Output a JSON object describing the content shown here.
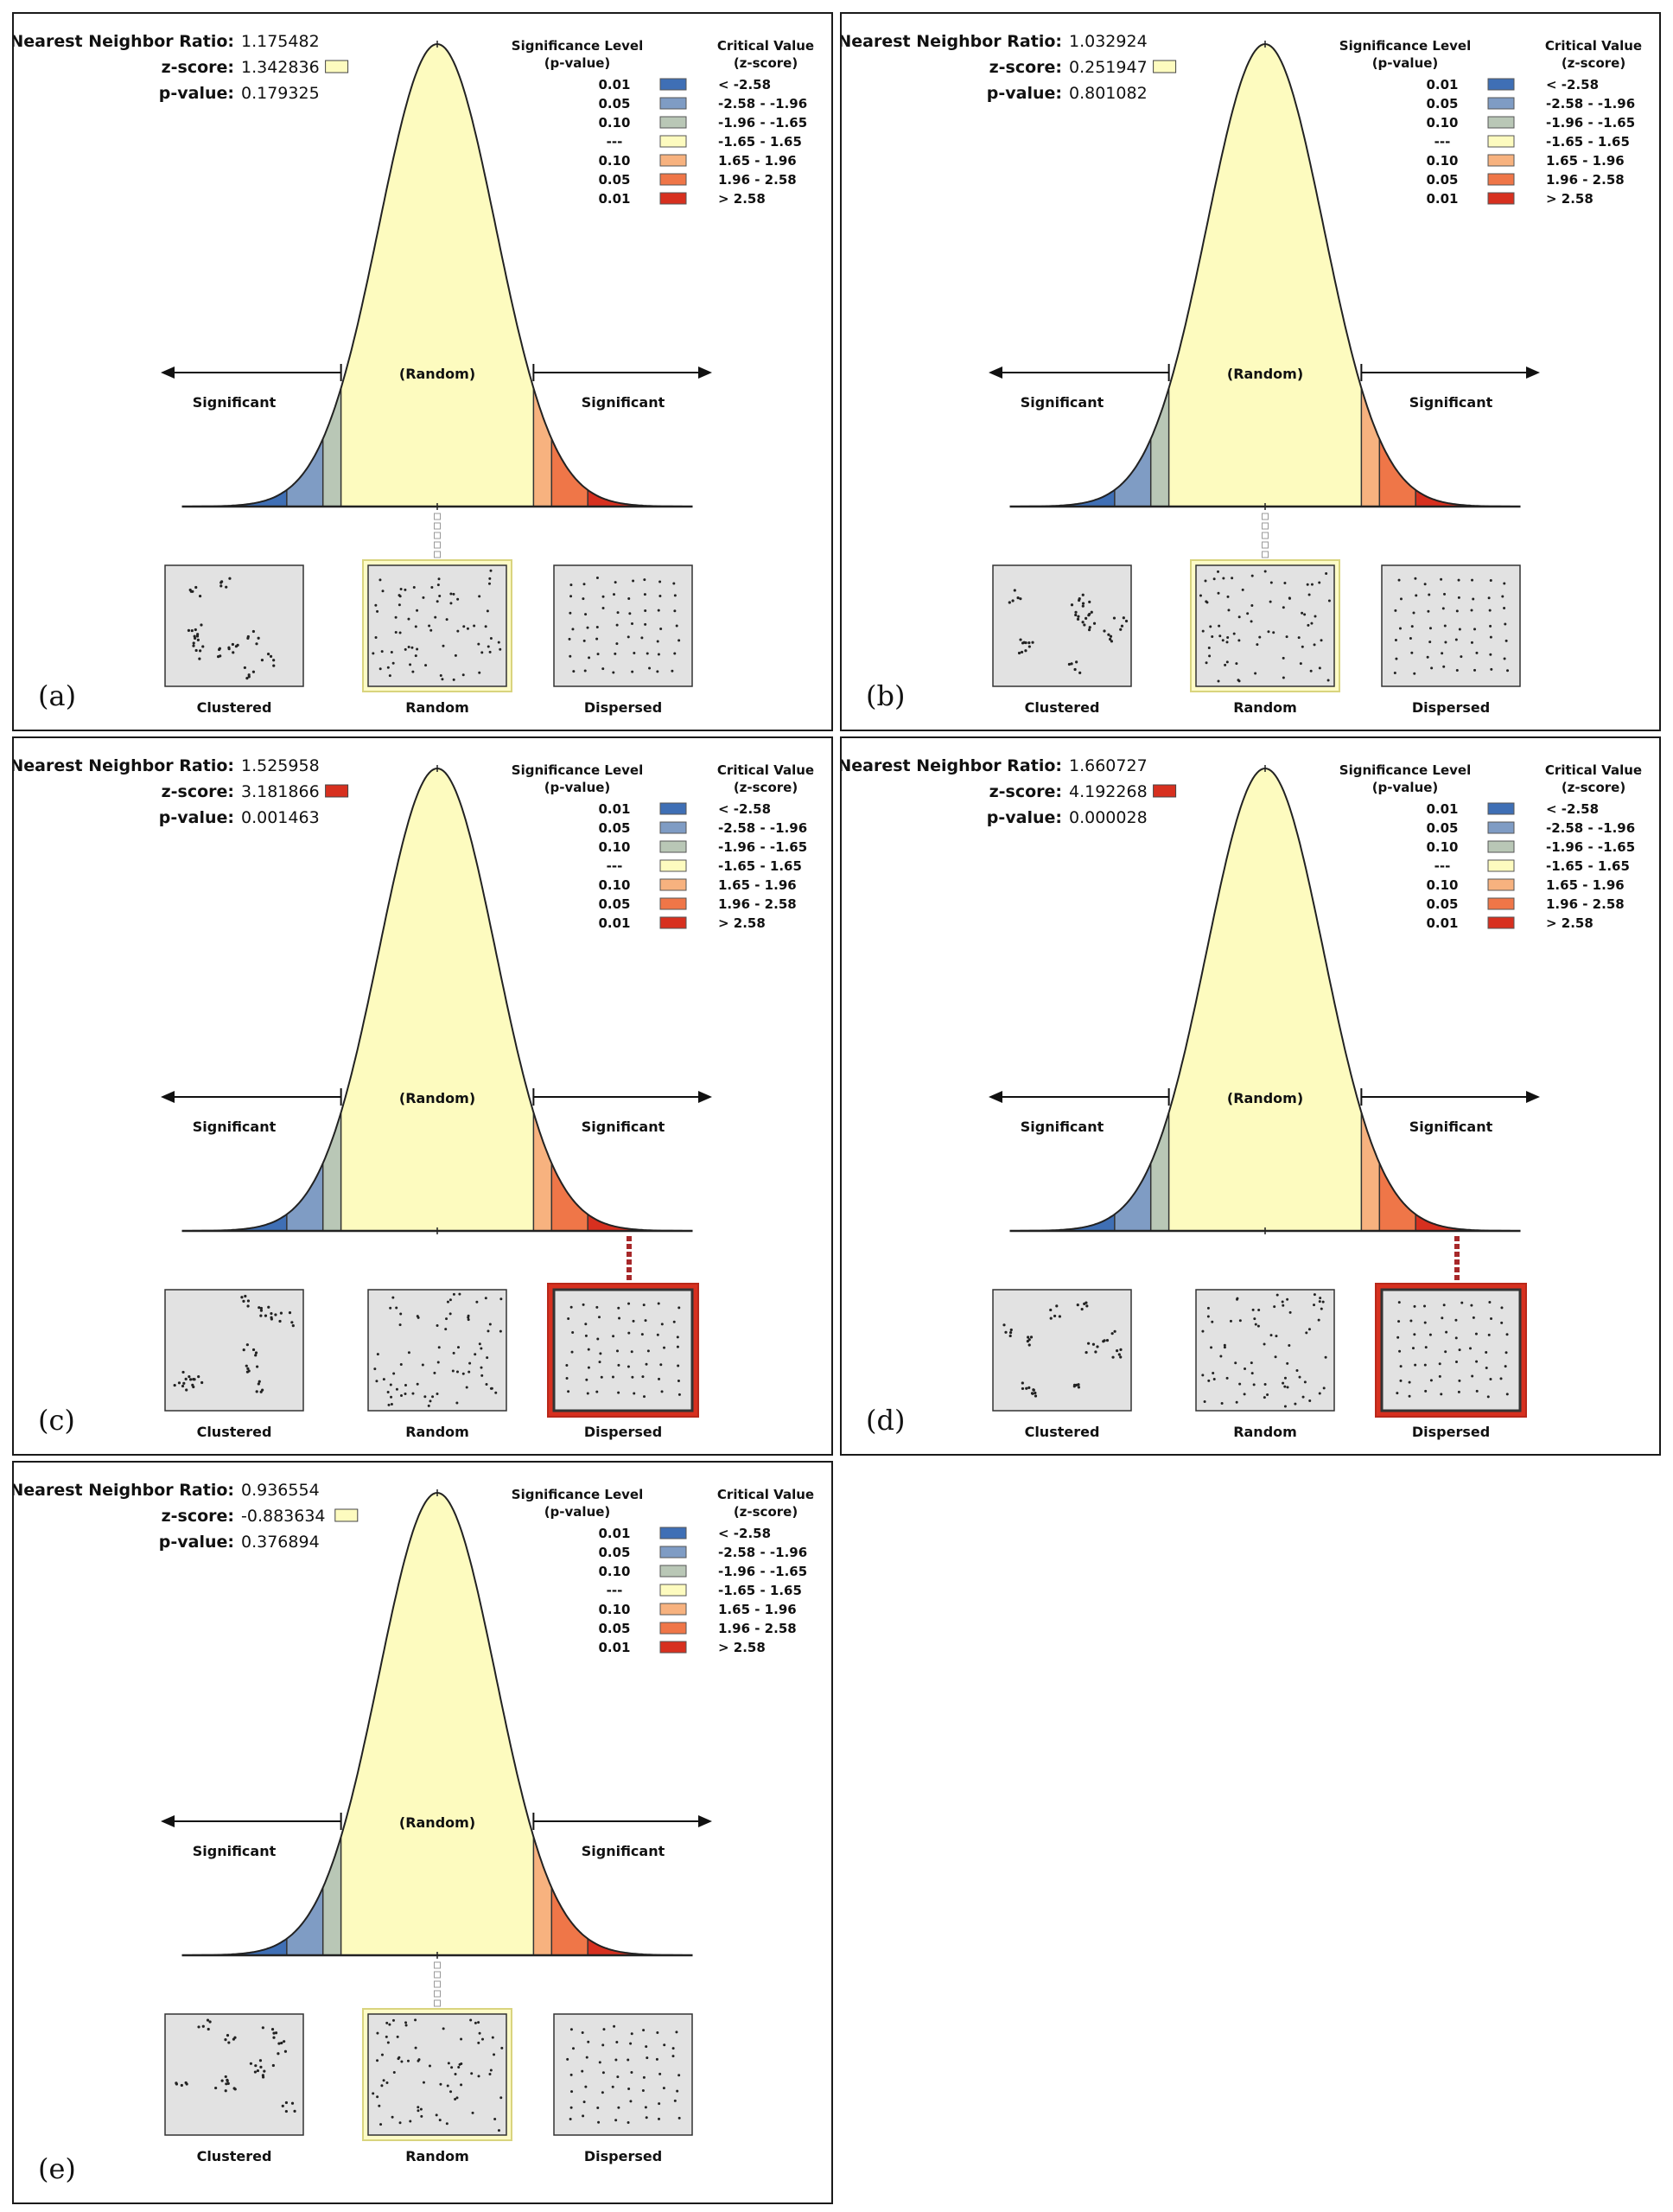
{
  "figure": {
    "labels": {
      "nnr": "Nearest Neighbor Ratio:",
      "z": "z-score:",
      "p": "p-value:",
      "sig_header_1": "Significance Level",
      "sig_header_2": "(p-value)",
      "crit_header_1": "Critical Value",
      "crit_header_2": "(z-score)",
      "random": "(Random)",
      "significant": "Significant",
      "clustered": "Clustered",
      "random_caption": "Random",
      "dispersed": "Dispersed"
    },
    "legend": [
      {
        "p": "0.01",
        "z": "< -2.58",
        "color": "#3f6fb5"
      },
      {
        "p": "0.05",
        "z": "-2.58 - -1.96",
        "color": "#7f9cc4"
      },
      {
        "p": "0.10",
        "z": "-1.96 - -1.65",
        "color": "#b9c7b6"
      },
      {
        "p": "---",
        "z": "-1.65 - 1.65",
        "color": "#fdfbbf"
      },
      {
        "p": "0.10",
        "z": "1.65 - 1.96",
        "color": "#f7b27f"
      },
      {
        "p": "0.05",
        "z": "1.96 - 2.58",
        "color": "#ef7648"
      },
      {
        "p": "0.01",
        "z": "> 2.58",
        "color": "#d7301f"
      }
    ]
  },
  "chart_data": [
    {
      "type": "normal-curve",
      "panel": "(a)",
      "nnr": "1.175482",
      "z_score": "1.342836",
      "p_value": "0.179325",
      "z": 1.342836,
      "category": "random"
    },
    {
      "type": "normal-curve",
      "panel": "(b)",
      "nnr": "1.032924",
      "z_score": "0.251947",
      "p_value": "0.801082",
      "z": 0.251947,
      "category": "random"
    },
    {
      "type": "normal-curve",
      "panel": "(c)",
      "nnr": "1.525958",
      "z_score": "3.181866",
      "p_value": "0.001463",
      "z": 3.181866,
      "category": "dispersed"
    },
    {
      "type": "normal-curve",
      "panel": "(d)",
      "nnr": "1.660727",
      "z_score": "4.192268",
      "p_value": "0.000028",
      "z": 4.192268,
      "category": "dispersed"
    },
    {
      "type": "normal-curve",
      "panel": "(e)",
      "nnr": "0.936554",
      "z_score": "-0.883634",
      "p_value": "0.376894",
      "z": -0.883634,
      "category": "random"
    }
  ]
}
